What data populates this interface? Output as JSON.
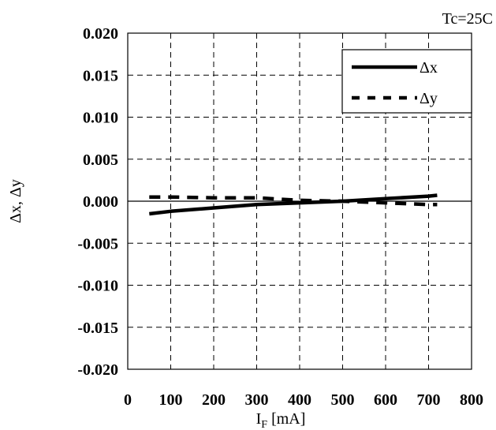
{
  "chart_data": {
    "type": "line",
    "annotation": "Tc=25C",
    "ylabel": "Δx, Δy",
    "xlabel_main": "I",
    "xlabel_sub": "F",
    "xlabel_unit": " [mA]",
    "xlim": [
      0,
      800
    ],
    "ylim": [
      -0.02,
      0.02
    ],
    "x_ticks": [
      "0",
      "100",
      "200",
      "300",
      "400",
      "500",
      "600",
      "700",
      "800"
    ],
    "x_tick_values": [
      0,
      100,
      200,
      300,
      400,
      500,
      600,
      700,
      800
    ],
    "y_ticks": [
      "0.020",
      "0.015",
      "0.010",
      "0.005",
      "0.000",
      "-0.005",
      "-0.010",
      "-0.015",
      "-0.020"
    ],
    "y_tick_values": [
      0.02,
      0.015,
      0.01,
      0.005,
      0.0,
      -0.005,
      -0.01,
      -0.015,
      -0.02
    ],
    "grid": true,
    "legend_position": "top-right",
    "series": [
      {
        "name": "Δx",
        "style": "solid",
        "x": [
          50,
          100,
          200,
          300,
          400,
          500,
          600,
          700,
          720
        ],
        "y": [
          -0.0015,
          -0.0012,
          -0.0008,
          -0.0004,
          -0.0002,
          0.0,
          0.0003,
          0.0006,
          0.0007
        ]
      },
      {
        "name": "Δy",
        "style": "dashed",
        "x": [
          50,
          100,
          200,
          300,
          400,
          500,
          600,
          700,
          720
        ],
        "y": [
          0.0005,
          0.0005,
          0.0004,
          0.0004,
          0.0001,
          0.0,
          -0.0002,
          -0.0004,
          -0.0004
        ]
      }
    ],
    "colors": {
      "line": "#000000",
      "grid": "#000000",
      "background": "#ffffff"
    }
  }
}
